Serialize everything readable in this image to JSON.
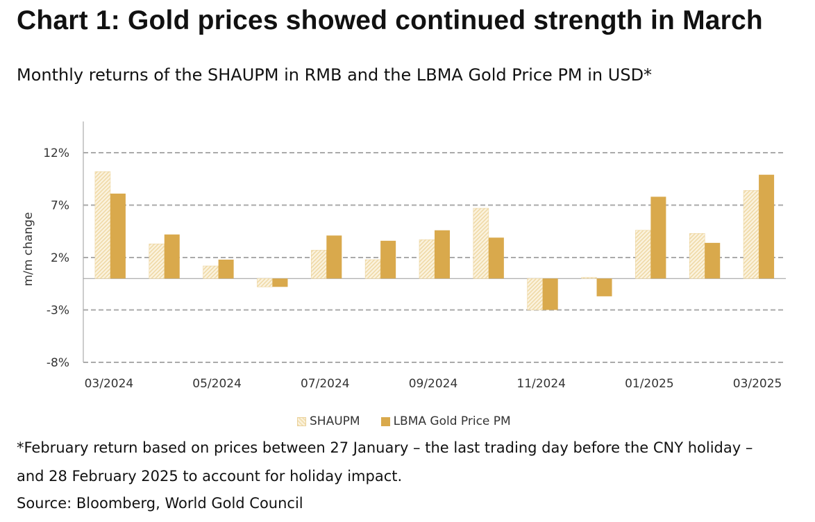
{
  "title": "Chart 1: Gold prices showed continued strength in March",
  "subtitle": "Monthly returns of the SHAUPM in RMB and the LBMA Gold Price PM in USD*",
  "notes": {
    "line1": "*February return based on prices between 27 January – the last trading day before the CNY holiday –",
    "line2": "and 28 February 2025 to account for holiday impact.",
    "source": "Source: Bloomberg, World Gold Council"
  },
  "legend": {
    "shaupm": "SHAUPM",
    "lbma": "LBMA Gold Price PM"
  },
  "chart_data": {
    "type": "bar",
    "ylabel": "m/m change",
    "xlabel": "",
    "ylim": [
      -8,
      15
    ],
    "yticks": [
      12,
      7,
      2,
      -3,
      -8
    ],
    "ytick_labels": [
      "12%",
      "7%",
      "2%",
      "-3%",
      "-8%"
    ],
    "grid": true,
    "legend_position": "bottom",
    "categories": [
      "03/2024",
      "04/2024",
      "05/2024",
      "06/2024",
      "07/2024",
      "08/2024",
      "09/2024",
      "10/2024",
      "11/2024",
      "12/2024",
      "01/2025",
      "02/2025",
      "03/2025"
    ],
    "x_tick_labels": [
      "03/2024",
      "",
      "05/2024",
      "",
      "07/2024",
      "",
      "09/2024",
      "",
      "11/2024",
      "",
      "01/2025",
      "",
      "03/2025"
    ],
    "series": [
      {
        "name": "SHAUPM",
        "color": "#f3e2b8",
        "values": [
          10.2,
          3.3,
          1.2,
          -0.8,
          2.7,
          1.8,
          3.7,
          6.7,
          -3.0,
          0.1,
          4.6,
          4.3,
          8.4
        ]
      },
      {
        "name": "LBMA Gold Price PM",
        "color": "#d9a94c",
        "values": [
          8.1,
          4.2,
          1.8,
          -0.8,
          4.1,
          3.6,
          4.6,
          3.9,
          -3.0,
          -1.7,
          7.8,
          3.4,
          9.9
        ]
      }
    ]
  }
}
